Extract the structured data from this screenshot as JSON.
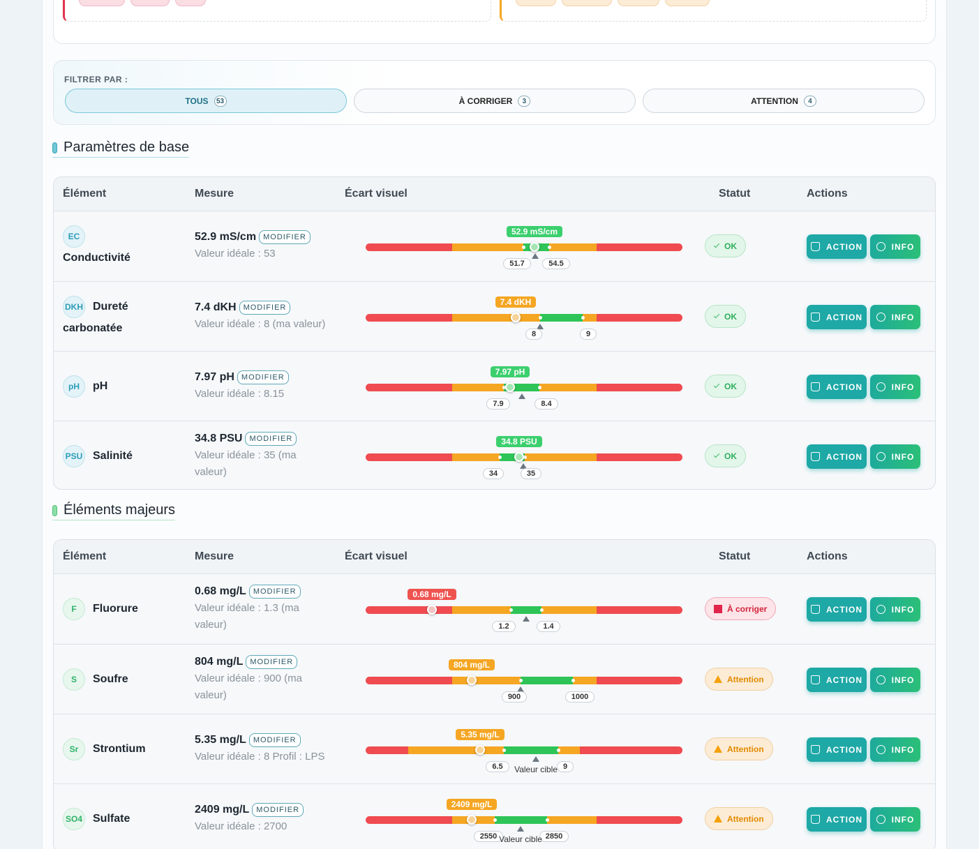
{
  "filter": {
    "label": "FILTRER PAR :",
    "buttons": [
      {
        "label": "TOUS",
        "count": 53
      },
      {
        "label": "À CORRIGER",
        "count": 3
      },
      {
        "label": "ATTENTION",
        "count": 4
      }
    ]
  },
  "sections": [
    {
      "title": "Paramètres de base",
      "headers": [
        "Élément",
        "Mesure",
        "Écart visuel",
        "Statut",
        "Actions"
      ],
      "rows": [
        {
          "icon": "EC",
          "name": "Conductivité",
          "measure": "52.9 mS/cm",
          "edit": "MODIFIER",
          "ideal": "Valeur idéale : 53",
          "gauge_value": "52.9 mS/cm",
          "range": [
            "51.7",
            "54.5"
          ],
          "status": "OK",
          "actions": [
            "ACTION",
            "INFO"
          ]
        },
        {
          "icon": "DKH",
          "name": "Dureté carbonatée",
          "measure": "7.4 dKH",
          "edit": "MODIFIER",
          "ideal": "Valeur idéale : 8 (ma valeur)",
          "gauge_value": "7.4 dKH",
          "range": [
            "8",
            "9"
          ],
          "status": "OK",
          "actions": [
            "ACTION",
            "INFO"
          ]
        },
        {
          "icon": "pH",
          "name": "pH",
          "measure": "7.97 pH",
          "edit": "MODIFIER",
          "ideal": "Valeur idéale : 8.15",
          "gauge_value": "7.97 pH",
          "range": [
            "7.9",
            "8.4"
          ],
          "status": "OK",
          "actions": [
            "ACTION",
            "INFO"
          ]
        },
        {
          "icon": "PSU",
          "name": "Salinité",
          "measure": "34.8 PSU",
          "edit": "MODIFIER",
          "ideal": "Valeur idéale : 35 (ma valeur)",
          "gauge_value": "34.8 PSU",
          "range": [
            "34",
            "35"
          ],
          "status": "OK",
          "actions": [
            "ACTION",
            "INFO"
          ]
        }
      ]
    },
    {
      "title": "Éléments majeurs",
      "headers": [
        "Élément",
        "Mesure",
        "Écart visuel",
        "Statut",
        "Actions"
      ],
      "rows": [
        {
          "icon": "F",
          "name": "Fluorure",
          "measure": "0.68 mg/L",
          "edit": "MODIFIER",
          "ideal": "Valeur idéale : 1.3 (ma valeur)",
          "gauge_value": "0.68 mg/L",
          "range": [
            "1.2",
            "1.4"
          ],
          "status": "À corriger",
          "actions": [
            "ACTION",
            "INFO"
          ]
        },
        {
          "icon": "S",
          "name": "Soufre",
          "measure": "804 mg/L",
          "edit": "MODIFIER",
          "ideal": "Valeur idéale : 900 (ma valeur)",
          "gauge_value": "804 mg/L",
          "range": [
            "900",
            "1000"
          ],
          "status": "Attention",
          "actions": [
            "ACTION",
            "INFO"
          ]
        },
        {
          "icon": "Sr",
          "name": "Strontium",
          "measure": "5.35 mg/L",
          "edit": "MODIFIER",
          "ideal": "Valeur idéale : 8 Profil : LPS",
          "gauge_value": "5.35 mg/L",
          "range": [
            "6.5",
            "9"
          ],
          "target_label": "Valeur cible",
          "status": "Attention",
          "actions": [
            "ACTION",
            "INFO"
          ]
        },
        {
          "icon": "SO4",
          "name": "Sulfate",
          "measure": "2409 mg/L",
          "edit": "MODIFIER",
          "ideal": "Valeur idéale : 2700",
          "gauge_value": "2409 mg/L",
          "range": [
            "2550",
            "2850"
          ],
          "target_label": "Valeur cible",
          "status": "Attention",
          "actions": [
            "ACTION",
            "INFO"
          ]
        }
      ]
    }
  ]
}
